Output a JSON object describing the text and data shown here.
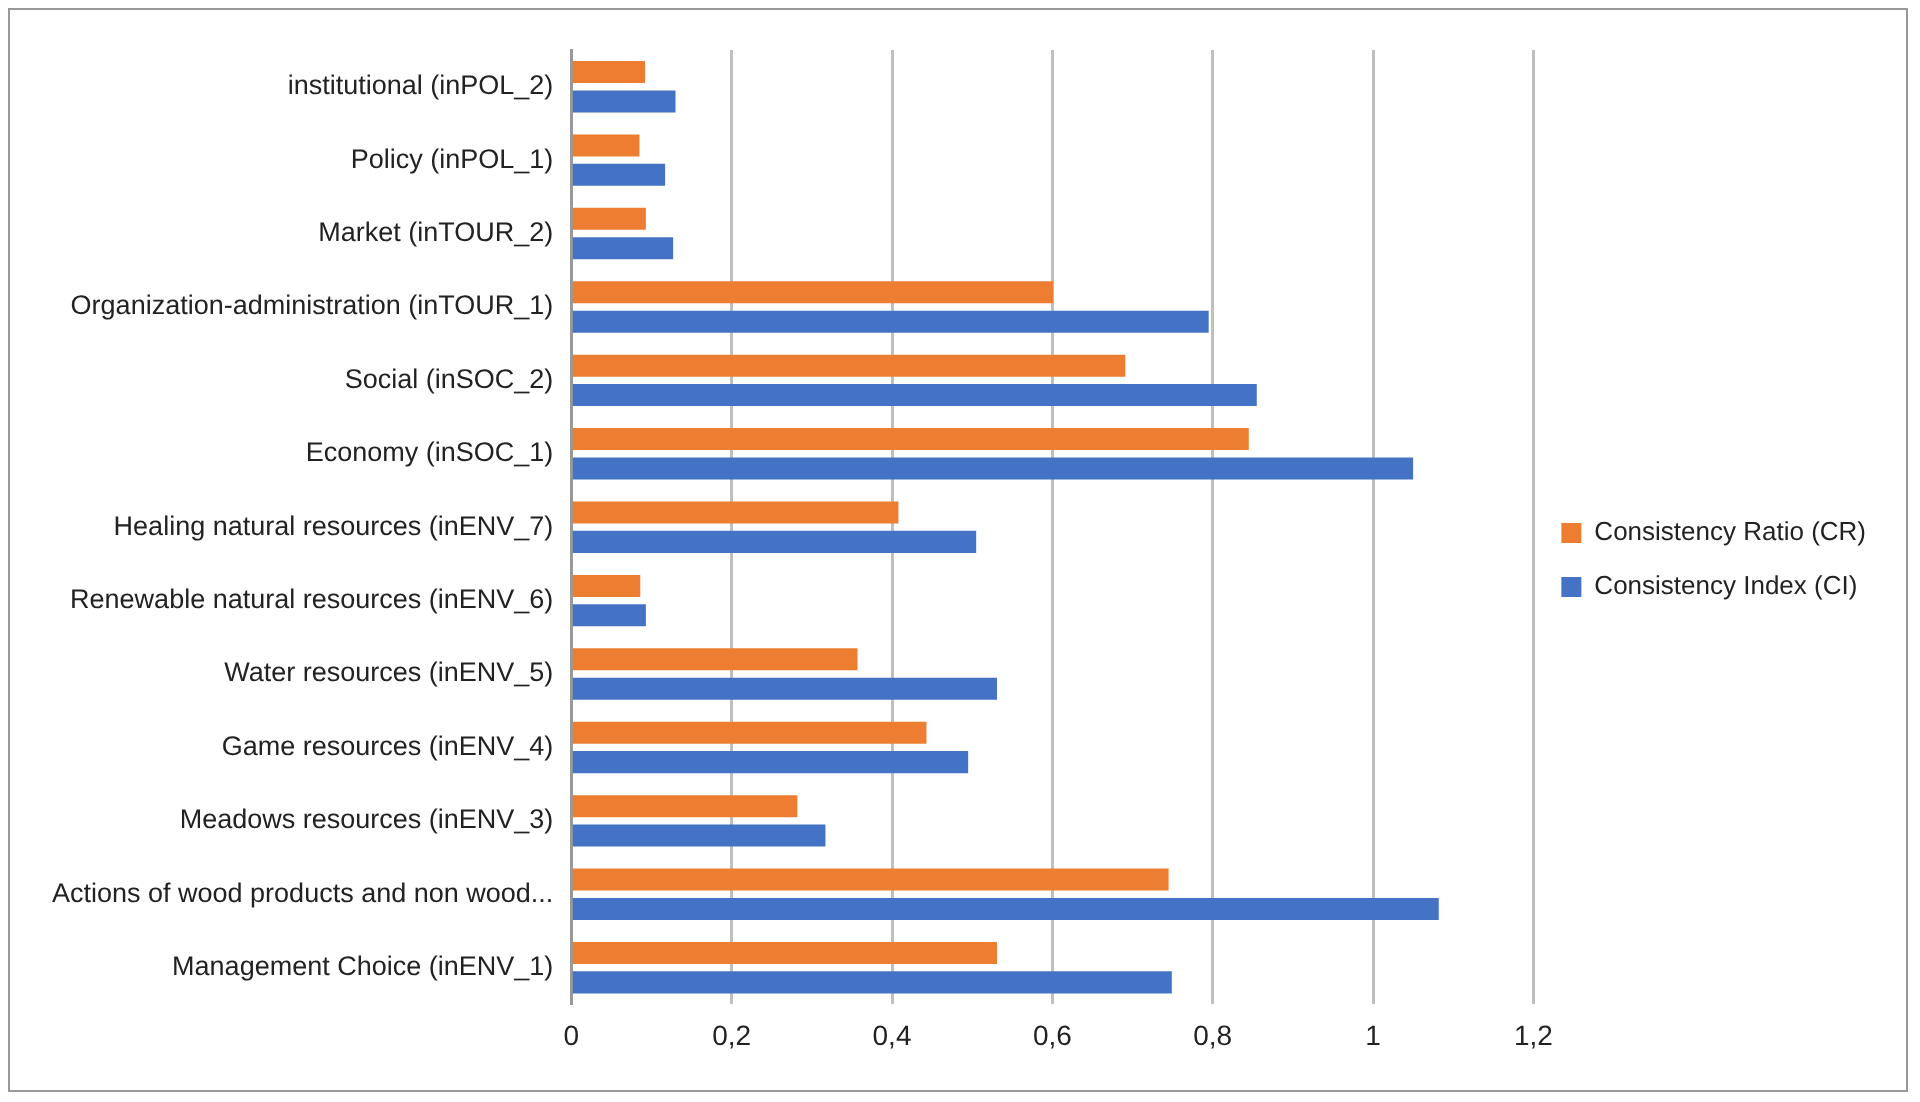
{
  "chart_data": {
    "type": "bar",
    "orientation": "horizontal",
    "categories": [
      "institutional (inPOL_2)",
      "Policy (inPOL_1)",
      "Market (inTOUR_2)",
      "Organization-administration (inTOUR_1)",
      "Social (inSOC_2)",
      "Economy (inSOC_1)",
      "Healing natural resources (inENV_7)",
      "Renewable natural resources (inENV_6)",
      "Water resources (inENV_5)",
      "Game resources (inENV_4)",
      "Meadows resources (inENV_3)",
      "Actions of wood products and non wood...",
      "Management Choice (inENV_1)"
    ],
    "series": [
      {
        "name": "Consistency Ratio (CR)",
        "color": "#ed7d31",
        "values": [
          0.092,
          0.085,
          0.093,
          0.601,
          0.691,
          0.845,
          0.408,
          0.086,
          0.357,
          0.443,
          0.282,
          0.745,
          0.531
        ]
      },
      {
        "name": "Consistency Index (CI)",
        "color": "#4472c4",
        "values": [
          0.13,
          0.117,
          0.127,
          0.795,
          0.855,
          1.05,
          0.505,
          0.093,
          0.531,
          0.495,
          0.317,
          1.082,
          0.749
        ]
      }
    ],
    "xlim": [
      0,
      1.2
    ],
    "xticks": [
      0,
      {
        "value": 0.2,
        "label": "0,2"
      },
      {
        "value": 0.4,
        "label": "0,4"
      },
      {
        "value": 0.6,
        "label": "0,6"
      },
      {
        "value": 0.8,
        "label": "0,8"
      },
      1,
      {
        "value": 1.2,
        "label": "1,2"
      }
    ],
    "grid": "x",
    "legend": "right"
  }
}
